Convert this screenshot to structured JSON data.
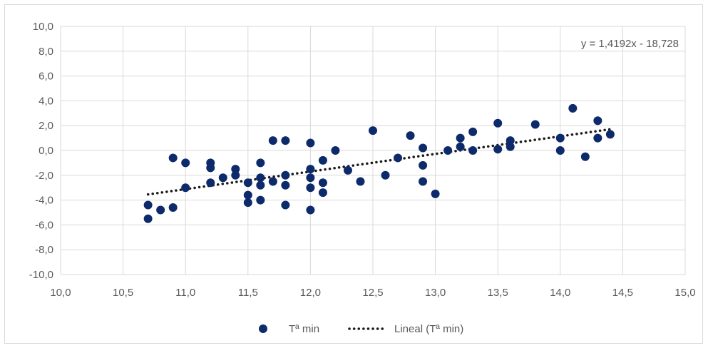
{
  "chart_data": {
    "type": "scatter",
    "xlim": [
      10.0,
      15.0
    ],
    "ylim": [
      -10.0,
      10.0
    ],
    "x_ticks": [
      "10,0",
      "10,5",
      "11,0",
      "11,5",
      "12,0",
      "12,5",
      "13,0",
      "13,5",
      "14,0",
      "14,5",
      "15,0"
    ],
    "y_ticks": [
      "10,0",
      "8,0",
      "6,0",
      "4,0",
      "2,0",
      "0,0",
      "-2,0",
      "-4,0",
      "-6,0",
      "-8,0",
      "-10,0"
    ],
    "grid": true,
    "legend_position": "bottom",
    "series": [
      {
        "name": "Tª min",
        "color": "#0d2a6b",
        "marker": "circle",
        "points": [
          [
            10.7,
            -4.4
          ],
          [
            10.7,
            -5.5
          ],
          [
            10.8,
            -4.8
          ],
          [
            10.9,
            -4.6
          ],
          [
            10.9,
            -0.6
          ],
          [
            11.0,
            -1.0
          ],
          [
            11.0,
            -3.0
          ],
          [
            11.2,
            -1.0
          ],
          [
            11.2,
            -1.4
          ],
          [
            11.2,
            -2.6
          ],
          [
            11.3,
            -2.2
          ],
          [
            11.4,
            -1.5
          ],
          [
            11.4,
            -2.0
          ],
          [
            11.5,
            -2.6
          ],
          [
            11.5,
            -3.6
          ],
          [
            11.5,
            -4.2
          ],
          [
            11.6,
            -1.0
          ],
          [
            11.6,
            -2.2
          ],
          [
            11.6,
            -2.8
          ],
          [
            11.6,
            -4.0
          ],
          [
            11.7,
            0.8
          ],
          [
            11.7,
            -2.5
          ],
          [
            11.8,
            0.8
          ],
          [
            11.8,
            -2.0
          ],
          [
            11.8,
            -2.8
          ],
          [
            11.8,
            -4.4
          ],
          [
            12.0,
            0.6
          ],
          [
            12.0,
            -1.5
          ],
          [
            12.0,
            -2.2
          ],
          [
            12.0,
            -3.0
          ],
          [
            12.0,
            -4.8
          ],
          [
            12.1,
            -0.8
          ],
          [
            12.1,
            -2.6
          ],
          [
            12.1,
            -3.4
          ],
          [
            12.2,
            0.0
          ],
          [
            12.3,
            -1.6
          ],
          [
            12.4,
            -2.5
          ],
          [
            12.5,
            1.6
          ],
          [
            12.6,
            -2.0
          ],
          [
            12.7,
            -0.6
          ],
          [
            12.8,
            1.2
          ],
          [
            12.9,
            0.2
          ],
          [
            12.9,
            -1.2
          ],
          [
            12.9,
            -2.5
          ],
          [
            13.0,
            -3.5
          ],
          [
            13.1,
            0.0
          ],
          [
            13.2,
            1.0
          ],
          [
            13.2,
            0.3
          ],
          [
            13.3,
            1.5
          ],
          [
            13.3,
            0.0
          ],
          [
            13.5,
            2.2
          ],
          [
            13.5,
            0.1
          ],
          [
            13.6,
            0.8
          ],
          [
            13.6,
            0.3
          ],
          [
            13.8,
            2.1
          ],
          [
            14.0,
            1.0
          ],
          [
            14.0,
            0.0
          ],
          [
            14.1,
            3.4
          ],
          [
            14.2,
            -0.5
          ],
          [
            14.3,
            2.4
          ],
          [
            14.3,
            1.0
          ],
          [
            14.4,
            1.3
          ]
        ]
      },
      {
        "name": "Lineal (Tª min)",
        "type": "trendline",
        "color": "#1a1a1a",
        "style": "dotted",
        "slope": 1.4192,
        "intercept": -18.728,
        "x_range": [
          10.7,
          14.4
        ]
      }
    ],
    "annotations": [
      {
        "text": "y = 1,4192x - 18,728",
        "position": "top-right"
      }
    ]
  }
}
